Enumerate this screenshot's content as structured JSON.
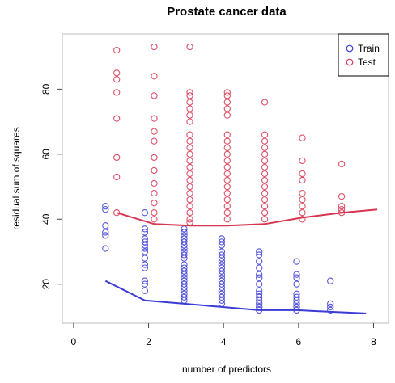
{
  "chart_data": {
    "type": "scatter",
    "title": "Prostate cancer data",
    "xlabel": "number of predictors",
    "ylabel": "residual sum of squares",
    "xlim": [
      -0.3,
      8.4
    ],
    "ylim": [
      8,
      97
    ],
    "x_ticks": [
      0,
      2,
      4,
      6,
      8
    ],
    "y_ticks": [
      20,
      40,
      60,
      80
    ],
    "grid": false,
    "legend": {
      "position": "top-right",
      "entries": [
        {
          "label": "Train",
          "color": "#3b3bd6"
        },
        {
          "label": "Test",
          "color": "#d63550"
        }
      ]
    },
    "series": [
      {
        "name": "Train",
        "color": "#3b3bd6",
        "points": [
          [
            0.85,
            44
          ],
          [
            0.85,
            43
          ],
          [
            0.85,
            38
          ],
          [
            0.85,
            36
          ],
          [
            0.85,
            35
          ],
          [
            0.85,
            31
          ],
          [
            1.9,
            42
          ],
          [
            1.9,
            37
          ],
          [
            1.9,
            36
          ],
          [
            1.9,
            34
          ],
          [
            1.9,
            33
          ],
          [
            1.9,
            32
          ],
          [
            1.9,
            31
          ],
          [
            1.9,
            30
          ],
          [
            1.9,
            28
          ],
          [
            1.9,
            26
          ],
          [
            1.9,
            25
          ],
          [
            1.9,
            21
          ],
          [
            1.9,
            20
          ],
          [
            1.9,
            18
          ],
          [
            2.95,
            37
          ],
          [
            2.95,
            36
          ],
          [
            2.95,
            35
          ],
          [
            2.95,
            34
          ],
          [
            2.95,
            33
          ],
          [
            2.95,
            32
          ],
          [
            2.95,
            31
          ],
          [
            2.95,
            30
          ],
          [
            2.95,
            29
          ],
          [
            2.95,
            28
          ],
          [
            2.95,
            26
          ],
          [
            2.95,
            25
          ],
          [
            2.95,
            24
          ],
          [
            2.95,
            23
          ],
          [
            2.95,
            22
          ],
          [
            2.95,
            21
          ],
          [
            2.95,
            20
          ],
          [
            2.95,
            19
          ],
          [
            2.95,
            18
          ],
          [
            2.95,
            17
          ],
          [
            2.95,
            16
          ],
          [
            2.95,
            15
          ],
          [
            3.95,
            34
          ],
          [
            3.95,
            33
          ],
          [
            3.95,
            32
          ],
          [
            3.95,
            30
          ],
          [
            3.95,
            29
          ],
          [
            3.95,
            28
          ],
          [
            3.95,
            27
          ],
          [
            3.95,
            26
          ],
          [
            3.95,
            25
          ],
          [
            3.95,
            24
          ],
          [
            3.95,
            23
          ],
          [
            3.95,
            22
          ],
          [
            3.95,
            21
          ],
          [
            3.95,
            20
          ],
          [
            3.95,
            19
          ],
          [
            3.95,
            18
          ],
          [
            3.95,
            17
          ],
          [
            3.95,
            16
          ],
          [
            3.95,
            15
          ],
          [
            3.95,
            14
          ],
          [
            4.95,
            30
          ],
          [
            4.95,
            29
          ],
          [
            4.95,
            27
          ],
          [
            4.95,
            25
          ],
          [
            4.95,
            23
          ],
          [
            4.95,
            22
          ],
          [
            4.95,
            20
          ],
          [
            4.95,
            18
          ],
          [
            4.95,
            17
          ],
          [
            4.95,
            16
          ],
          [
            4.95,
            15
          ],
          [
            4.95,
            14
          ],
          [
            4.95,
            13
          ],
          [
            4.95,
            12
          ],
          [
            5.95,
            27
          ],
          [
            5.95,
            23
          ],
          [
            5.95,
            22
          ],
          [
            5.95,
            20
          ],
          [
            5.95,
            17
          ],
          [
            5.95,
            16
          ],
          [
            5.95,
            15
          ],
          [
            5.95,
            14
          ],
          [
            5.95,
            13
          ],
          [
            5.95,
            12
          ],
          [
            6.85,
            21
          ],
          [
            6.85,
            14
          ],
          [
            6.85,
            13
          ],
          [
            6.85,
            12
          ]
        ],
        "line": [
          [
            0.85,
            21
          ],
          [
            1.9,
            15
          ],
          [
            2.95,
            14
          ],
          [
            3.95,
            13
          ],
          [
            4.95,
            12
          ],
          [
            5.95,
            12
          ],
          [
            6.85,
            11.5
          ],
          [
            7.8,
            11
          ]
        ]
      },
      {
        "name": "Test",
        "color": "#d63550",
        "points": [
          [
            1.15,
            92
          ],
          [
            1.15,
            85
          ],
          [
            1.15,
            83
          ],
          [
            1.15,
            79
          ],
          [
            1.15,
            71
          ],
          [
            1.15,
            59
          ],
          [
            1.15,
            53
          ],
          [
            1.15,
            42
          ],
          [
            2.15,
            93
          ],
          [
            2.15,
            84
          ],
          [
            2.15,
            78
          ],
          [
            2.15,
            71
          ],
          [
            2.15,
            67
          ],
          [
            2.15,
            64
          ],
          [
            2.15,
            59
          ],
          [
            2.15,
            55
          ],
          [
            2.15,
            51
          ],
          [
            2.15,
            48
          ],
          [
            2.15,
            45
          ],
          [
            2.15,
            42
          ],
          [
            2.15,
            40
          ],
          [
            3.1,
            93
          ],
          [
            3.1,
            79
          ],
          [
            3.1,
            78
          ],
          [
            3.1,
            76
          ],
          [
            3.1,
            74
          ],
          [
            3.1,
            72
          ],
          [
            3.1,
            70
          ],
          [
            3.1,
            66
          ],
          [
            3.1,
            64
          ],
          [
            3.1,
            62
          ],
          [
            3.1,
            60
          ],
          [
            3.1,
            58
          ],
          [
            3.1,
            56
          ],
          [
            3.1,
            54
          ],
          [
            3.1,
            52
          ],
          [
            3.1,
            50
          ],
          [
            3.1,
            48
          ],
          [
            3.1,
            46
          ],
          [
            3.1,
            44
          ],
          [
            3.1,
            42
          ],
          [
            3.1,
            40
          ],
          [
            3.1,
            39
          ],
          [
            4.1,
            79
          ],
          [
            4.1,
            78
          ],
          [
            4.1,
            76
          ],
          [
            4.1,
            74
          ],
          [
            4.1,
            72
          ],
          [
            4.1,
            66
          ],
          [
            4.1,
            64
          ],
          [
            4.1,
            62
          ],
          [
            4.1,
            60
          ],
          [
            4.1,
            58
          ],
          [
            4.1,
            56
          ],
          [
            4.1,
            54
          ],
          [
            4.1,
            52
          ],
          [
            4.1,
            50
          ],
          [
            4.1,
            48
          ],
          [
            4.1,
            46
          ],
          [
            4.1,
            44
          ],
          [
            4.1,
            42
          ],
          [
            4.1,
            40
          ],
          [
            5.1,
            76
          ],
          [
            5.1,
            66
          ],
          [
            5.1,
            64
          ],
          [
            5.1,
            62
          ],
          [
            5.1,
            60
          ],
          [
            5.1,
            58
          ],
          [
            5.1,
            56
          ],
          [
            5.1,
            54
          ],
          [
            5.1,
            52
          ],
          [
            5.1,
            50
          ],
          [
            5.1,
            48
          ],
          [
            5.1,
            46
          ],
          [
            5.1,
            44
          ],
          [
            5.1,
            42
          ],
          [
            5.1,
            40
          ],
          [
            6.1,
            65
          ],
          [
            6.1,
            58
          ],
          [
            6.1,
            54
          ],
          [
            6.1,
            52
          ],
          [
            6.1,
            48
          ],
          [
            6.1,
            46
          ],
          [
            6.1,
            44
          ],
          [
            6.1,
            42
          ],
          [
            6.1,
            40
          ],
          [
            7.15,
            57
          ],
          [
            7.15,
            47
          ],
          [
            7.15,
            44
          ],
          [
            7.15,
            43
          ],
          [
            7.15,
            42
          ]
        ],
        "line": [
          [
            1.15,
            42
          ],
          [
            2.15,
            38.5
          ],
          [
            3.1,
            38
          ],
          [
            4.1,
            38
          ],
          [
            5.1,
            38.5
          ],
          [
            6.1,
            40.5
          ],
          [
            7.15,
            42
          ],
          [
            8.1,
            43
          ]
        ]
      }
    ]
  }
}
